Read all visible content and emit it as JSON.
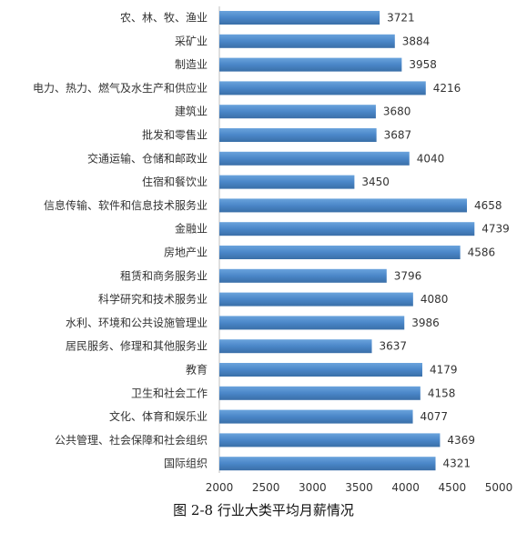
{
  "chart_data": {
    "type": "bar",
    "orientation": "horizontal",
    "title": "图 2-8 行业大类平均月薪情况",
    "xlabel": "",
    "ylabel": "",
    "xlim": [
      2000,
      5000
    ],
    "x_ticks": [
      2000,
      2500,
      3000,
      3500,
      4000,
      4500,
      5000
    ],
    "grid": false,
    "legend": "none",
    "bar_color": "#4a86c8",
    "categories": [
      "农、林、牧、渔业",
      "采矿业",
      "制造业",
      "电力、热力、燃气及水生产和供应业",
      "建筑业",
      "批发和零售业",
      "交通运输、仓储和邮政业",
      "住宿和餐饮业",
      "信息传输、软件和信息技术服务业",
      "金融业",
      "房地产业",
      "租赁和商务服务业",
      "科学研究和技术服务业",
      "水利、环境和公共设施管理业",
      "居民服务、修理和其他服务业",
      "教育",
      "卫生和社会工作",
      "文化、体育和娱乐业",
      "公共管理、社会保障和社会组织",
      "国际组织"
    ],
    "values": [
      3721,
      3884,
      3958,
      4216,
      3680,
      3687,
      4040,
      3450,
      4658,
      4739,
      4586,
      3796,
      4080,
      3986,
      3637,
      4179,
      4158,
      4077,
      4369,
      4321
    ]
  }
}
